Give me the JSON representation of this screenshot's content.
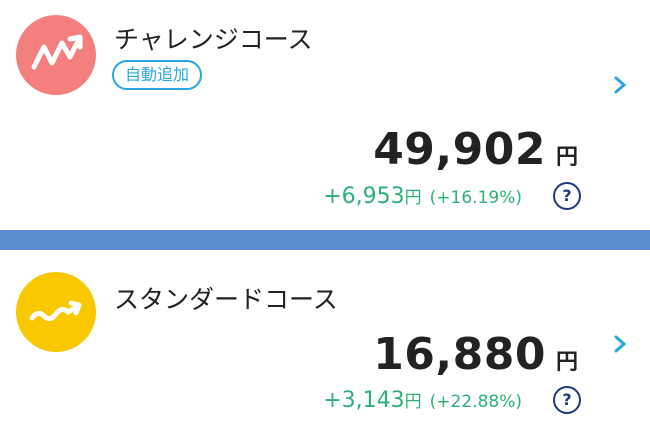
{
  "courses": [
    {
      "name": "チャレンジコース",
      "badge": "自動追加",
      "amount": "49,902",
      "amount_unit": "円",
      "gain": "+6,953",
      "gain_unit": "円",
      "gain_percent": "(+16.19%)",
      "help": "?"
    },
    {
      "name": "スタンダードコース",
      "amount": "16,880",
      "amount_unit": "円",
      "gain": "+3,143",
      "gain_unit": "円",
      "gain_percent": "(+22.88%)",
      "help": "?"
    }
  ]
}
